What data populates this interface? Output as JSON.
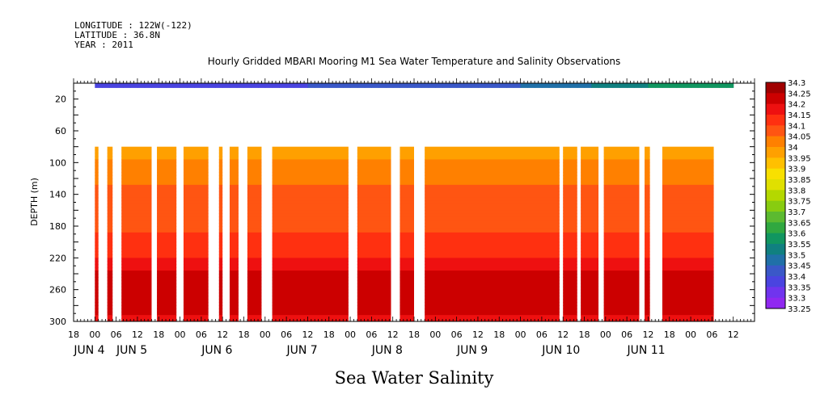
{
  "header": {
    "longitude": "LONGITUDE : 122W(-122)",
    "latitude": "LATITUDE : 36.8N",
    "year": "YEAR : 2011"
  },
  "chart_data": {
    "type": "heatmap",
    "title": "Hourly Gridded MBARI Mooring M1 Sea Water Temperature and Salinity Observations",
    "caption": "Sea Water Salinity",
    "ylabel": "DEPTH (m)",
    "y_inverted": true,
    "ylim": [
      300,
      0
    ],
    "xlim_hours": [
      -6,
      186
    ],
    "y_ticks": [
      20,
      60,
      100,
      140,
      180,
      220,
      260,
      300
    ],
    "x_hour_ticks": [
      {
        "h": -6,
        "label": "18"
      },
      {
        "h": 0,
        "label": "00"
      },
      {
        "h": 6,
        "label": "06"
      },
      {
        "h": 12,
        "label": "12"
      },
      {
        "h": 18,
        "label": "18"
      },
      {
        "h": 24,
        "label": "00"
      },
      {
        "h": 30,
        "label": "06"
      },
      {
        "h": 36,
        "label": "12"
      },
      {
        "h": 42,
        "label": "18"
      },
      {
        "h": 48,
        "label": "00"
      },
      {
        "h": 54,
        "label": "06"
      },
      {
        "h": 60,
        "label": "12"
      },
      {
        "h": 66,
        "label": "18"
      },
      {
        "h": 72,
        "label": "00"
      },
      {
        "h": 78,
        "label": "06"
      },
      {
        "h": 84,
        "label": "12"
      },
      {
        "h": 90,
        "label": "18"
      },
      {
        "h": 96,
        "label": "00"
      },
      {
        "h": 102,
        "label": "06"
      },
      {
        "h": 108,
        "label": "12"
      },
      {
        "h": 114,
        "label": "18"
      },
      {
        "h": 120,
        "label": "00"
      },
      {
        "h": 126,
        "label": "06"
      },
      {
        "h": 132,
        "label": "12"
      },
      {
        "h": 138,
        "label": "18"
      },
      {
        "h": 144,
        "label": "00"
      },
      {
        "h": 150,
        "label": "06"
      },
      {
        "h": 156,
        "label": "12"
      },
      {
        "h": 162,
        "label": "18"
      },
      {
        "h": 168,
        "label": "00"
      },
      {
        "h": 174,
        "label": "06"
      },
      {
        "h": 180,
        "label": "12"
      }
    ],
    "x_date_labels": [
      {
        "h": 0,
        "label": "JUN  4"
      },
      {
        "h": 12,
        "label": "JUN  5"
      },
      {
        "h": 36,
        "label": "JUN  6"
      },
      {
        "h": 60,
        "label": "JUN  7"
      },
      {
        "h": 84,
        "label": "JUN  8"
      },
      {
        "h": 108,
        "label": "JUN  9"
      },
      {
        "h": 132,
        "label": "JUN 10"
      },
      {
        "h": 156,
        "label": "JUN 11"
      }
    ],
    "surface_layer": {
      "depth_range": [
        0,
        6
      ],
      "hours": [
        0,
        20,
        40,
        60,
        80,
        100,
        120,
        140,
        160,
        180
      ],
      "values": [
        33.36,
        33.38,
        33.39,
        33.4,
        33.41,
        33.43,
        33.45,
        33.5,
        33.56,
        33.6
      ]
    },
    "subsurface": {
      "depth_range": [
        80,
        300
      ],
      "depths": [
        80,
        100,
        120,
        140,
        160,
        180,
        200,
        220,
        240,
        260,
        280,
        300
      ],
      "profile": [
        33.97,
        34.01,
        34.04,
        34.07,
        34.09,
        34.09,
        34.11,
        34.15,
        34.21,
        34.25,
        34.22,
        34.19
      ],
      "data_segments_hours": [
        [
          0,
          1
        ],
        [
          3.5,
          5
        ],
        [
          7.5,
          16
        ],
        [
          17.5,
          23
        ],
        [
          25,
          32
        ],
        [
          35,
          36
        ],
        [
          38,
          40.5
        ],
        [
          43,
          47
        ],
        [
          50,
          71.5
        ],
        [
          74,
          83.5
        ],
        [
          86,
          90
        ],
        [
          93,
          131
        ],
        [
          132,
          136
        ],
        [
          137,
          142
        ],
        [
          143.5,
          153.5
        ],
        [
          155,
          156.5
        ],
        [
          160,
          174.5
        ]
      ]
    },
    "colorbar": {
      "levels": [
        34.3,
        34.25,
        34.2,
        34.15,
        34.1,
        34.05,
        34,
        33.95,
        33.9,
        33.85,
        33.8,
        33.75,
        33.7,
        33.65,
        33.6,
        33.55,
        33.5,
        33.45,
        33.4,
        33.35,
        33.3,
        33.25
      ],
      "colors": [
        "#a00000",
        "#cc0000",
        "#ee1010",
        "#ff3010",
        "#ff5512",
        "#ff8000",
        "#ffa000",
        "#ffc000",
        "#f8e000",
        "#e0e000",
        "#b4d800",
        "#88cc10",
        "#5cba30",
        "#30a840",
        "#119660",
        "#108080",
        "#2070a8",
        "#3a58c8",
        "#4a44e0",
        "#7034ee",
        "#9028f0",
        "#c010f0"
      ]
    }
  }
}
